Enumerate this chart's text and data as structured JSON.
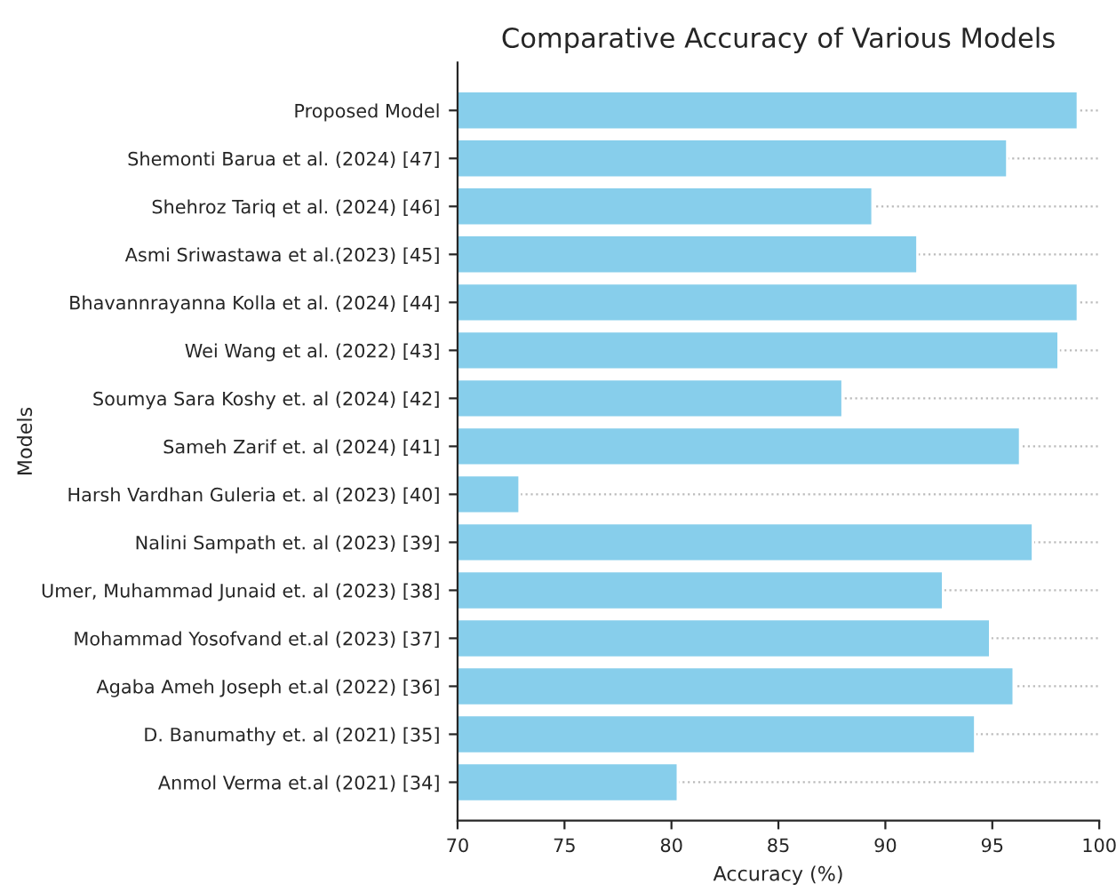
{
  "chart_data": {
    "type": "bar",
    "orientation": "horizontal",
    "title": "Comparative Accuracy of Various Models",
    "xlabel": "Accuracy (%)",
    "ylabel": "Models",
    "categories": [
      "Proposed Model",
      "Shemonti Barua et al. (2024) [47]",
      "Shehroz Tariq et al. (2024) [46]",
      "Asmi Sriwastawa et al.(2023) [45]",
      "Bhavannrayanna Kolla et al. (2024) [44]",
      "Wei Wang et al. (2022) [43]",
      "Soumya Sara Koshy et. al (2024) [42]",
      "Sameh Zarif et. al (2024) [41]",
      "Harsh Vardhan Guleria et. al (2023) [40]",
      "Nalini Sampath et. al (2023) [39]",
      "Umer, Muhammad Junaid et. al (2023) [38]",
      "Mohammad Yosofvand et.al (2023) [37]",
      "Agaba Ameh Joseph et.al (2022) [36]",
      "D. Banumathy et. al (2021) [35]",
      "Anmol Verma et.al (2021) [34]"
    ],
    "values": [
      99.0,
      95.7,
      89.4,
      91.5,
      99.0,
      98.1,
      88.0,
      96.3,
      72.9,
      96.9,
      92.7,
      94.9,
      96.0,
      94.2,
      80.3
    ],
    "color": "#87ceeb",
    "xlim": [
      70,
      100
    ],
    "xticks": [
      70,
      75,
      80,
      85,
      90,
      95,
      100
    ],
    "grid": "y"
  }
}
